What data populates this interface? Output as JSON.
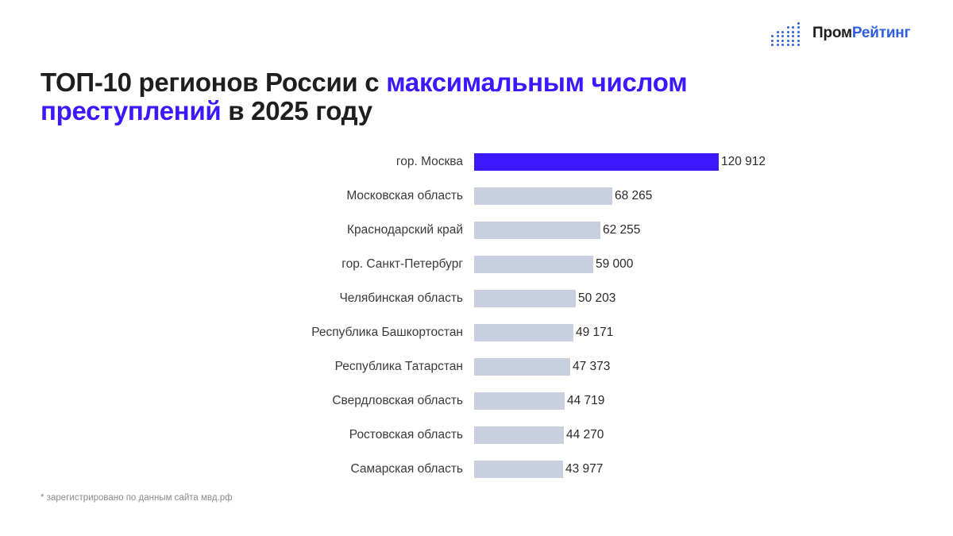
{
  "brand": {
    "name_part1": "Пром",
    "name_part2": "Рейтинг",
    "accent_color": "#2f5fe0"
  },
  "title": {
    "line1_plain": "ТОП-10 регионов России с ",
    "line1_highlight": "максимальным числом",
    "line2_highlight": "преступлений",
    "line2_plain": " в 2025 году",
    "highlight_color": "#3d17ff"
  },
  "footnote": "* зарегистрировано по данным сайта мвд.рф",
  "chart_data": {
    "type": "bar",
    "orientation": "horizontal",
    "title": "ТОП-10 регионов России с максимальным числом преступлений в 2025 году",
    "xlabel": "",
    "ylabel": "",
    "grid": false,
    "legend": null,
    "categories": [
      "гор. Москва",
      "Московская область",
      "Краснодарский край",
      "гор. Санкт-Петербург",
      "Челябинская область",
      "Республика Башкортостан",
      "Республика Татарстан",
      "Свердловская область",
      "Ростовская область",
      "Самарская область"
    ],
    "values": [
      120912,
      68265,
      62255,
      59000,
      50203,
      49171,
      47373,
      44719,
      44270,
      43977
    ],
    "value_labels": [
      "120 912",
      "68 265",
      "62 255",
      "59 000",
      "50 203",
      "49 171",
      "47 373",
      "44 719",
      "44 270",
      "43 977"
    ],
    "colors": {
      "highlight": "#3d17ff",
      "default": "#c8cfdf"
    }
  }
}
